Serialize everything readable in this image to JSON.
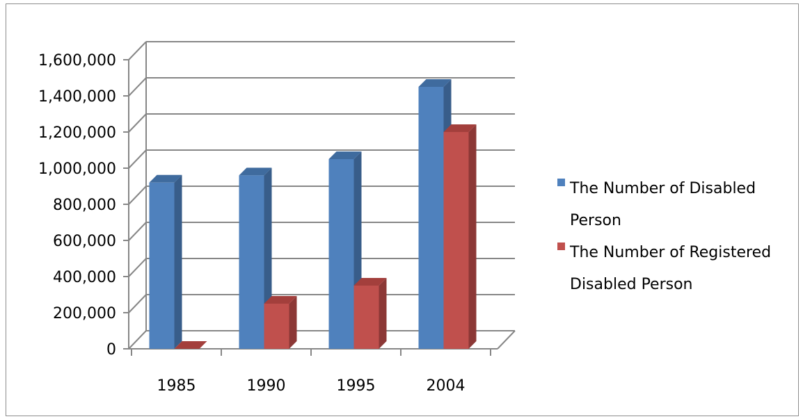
{
  "chart_data": {
    "type": "bar",
    "style": "3d-clustered-column",
    "categories": [
      "1985",
      "1990",
      "1995",
      "2004"
    ],
    "series": [
      {
        "name": "The Number of Disabled Person",
        "values": [
          920000,
          960000,
          1050000,
          1450000
        ],
        "color": "#4f81bd",
        "side_color": "#385d8a",
        "top_color": "#3f6b9e"
      },
      {
        "name": "The Number of Registered Disabled Person",
        "values": [
          0,
          250000,
          350000,
          1200000
        ],
        "color": "#c0504d",
        "side_color": "#8c3836",
        "top_color": "#a33f3c"
      }
    ],
    "legend": {
      "placement": "right",
      "entries": [
        {
          "lines": [
            "The Number of Disabled",
            "Person"
          ]
        },
        {
          "lines": [
            "The Number of Registered",
            "Disabled Person"
          ]
        }
      ]
    },
    "y_tick_labels": [
      "0",
      "200,000",
      "400,000",
      "600,000",
      "800,000",
      "1,000,000",
      "1,200,000",
      "1,400,000",
      "1,600,000"
    ],
    "ylim": [
      0,
      1600000
    ],
    "grid": true,
    "gridline_color": "#868686"
  }
}
